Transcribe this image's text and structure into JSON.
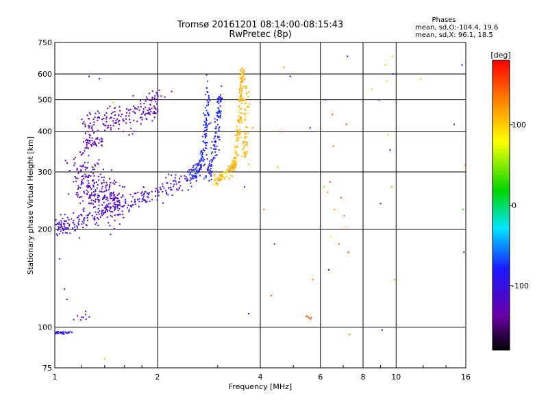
{
  "chart_data": {
    "type": "scatter",
    "title": "Tromsø 20161201 08:14:00-08:15:43",
    "subtitle": "RwPretec (8p)",
    "xlabel": "Frequency [MHz]",
    "ylabel": "Stationary phase Virtual Height [km]",
    "x_scale": "log",
    "y_scale": "log",
    "xlim": [
      1,
      16
    ],
    "ylim": [
      75,
      750
    ],
    "x_ticks": [
      1,
      2,
      4,
      6,
      8,
      10,
      16
    ],
    "x_tick_labels": [
      "1",
      "2",
      "4",
      "6",
      "8",
      "10",
      "16"
    ],
    "y_ticks": [
      75,
      100,
      200,
      300,
      400,
      500,
      600,
      750
    ],
    "y_tick_labels": [
      "75",
      "100",
      "200",
      "300",
      "400",
      "500",
      "600",
      "750"
    ],
    "grid": true,
    "legend": {
      "title": "Phases",
      "lines": [
        "mean, sd,O:-104.4, 19.6",
        "mean, sd,X:  96.1, 18.5"
      ]
    },
    "colorbar": {
      "label": "[deg]",
      "range": [
        -180,
        180
      ],
      "ticks": [
        100,
        0,
        -100
      ],
      "tick_labels": [
        "100",
        "0",
        "-100"
      ]
    },
    "traces": [
      {
        "kind": "curve",
        "x": [
          1.0,
          1.05,
          1.1,
          1.2,
          1.35,
          1.5,
          1.7,
          1.9,
          2.1,
          2.3,
          2.5
        ],
        "y": [
          205,
          203,
          205,
          212,
          222,
          232,
          245,
          256,
          266,
          277,
          290
        ],
        "spread": 0.035,
        "count": 260,
        "phase": -110,
        "phase_sd": 10
      },
      {
        "kind": "curve",
        "x": [
          1.15,
          1.25,
          1.35,
          1.45,
          1.55
        ],
        "y": [
          300,
          280,
          262,
          250,
          242
        ],
        "spread": 0.09,
        "count": 280,
        "phase": -120,
        "phase_sd": 12
      },
      {
        "kind": "curve",
        "x": [
          1.2,
          1.3,
          1.45,
          1.6,
          1.75,
          1.9,
          2.0
        ],
        "y": [
          400,
          418,
          432,
          440,
          448,
          470,
          500
        ],
        "spread": 0.05,
        "count": 190,
        "phase": -125,
        "phase_sd": 12
      },
      {
        "kind": "curve",
        "x": [
          1.22,
          1.3,
          1.38
        ],
        "y": [
          370,
          368,
          375
        ],
        "spread": 0.025,
        "count": 40,
        "phase": -128,
        "phase_sd": 8
      },
      {
        "kind": "curve",
        "x": [
          2.5,
          2.62,
          2.7,
          2.76,
          2.8,
          2.82
        ],
        "y": [
          290,
          300,
          330,
          380,
          450,
          560
        ],
        "spread": 0.03,
        "count": 150,
        "phase": -80,
        "phase_sd": 12
      },
      {
        "kind": "curve",
        "x": [
          2.8,
          2.88,
          2.96,
          3.02,
          3.06
        ],
        "y": [
          290,
          320,
          380,
          450,
          520
        ],
        "spread": 0.03,
        "count": 120,
        "phase": -85,
        "phase_sd": 10
      },
      {
        "kind": "curve",
        "x": [
          2.9,
          3.0,
          3.1,
          3.25,
          3.4
        ],
        "y": [
          280,
          285,
          292,
          305,
          320
        ],
        "spread": 0.02,
        "count": 80,
        "phase": 110,
        "phase_sd": 12
      },
      {
        "kind": "curve",
        "x": [
          3.3,
          3.4,
          3.45,
          3.5,
          3.52,
          3.55
        ],
        "y": [
          300,
          340,
          400,
          470,
          540,
          620
        ],
        "spread": 0.025,
        "count": 150,
        "phase": 110,
        "phase_sd": 10
      },
      {
        "kind": "curve",
        "x": [
          3.6,
          3.63,
          3.66
        ],
        "y": [
          320,
          420,
          560
        ],
        "spread": 0.025,
        "count": 60,
        "phase": 110,
        "phase_sd": 8
      },
      {
        "kind": "curve",
        "x": [
          1.0,
          1.04,
          1.08,
          1.12
        ],
        "y": [
          96,
          96,
          96,
          97
        ],
        "spread": 0.005,
        "count": 35,
        "phase": -100,
        "phase_sd": 5
      },
      {
        "kind": "curve",
        "x": [
          1.02,
          1.1,
          1.2,
          1.3
        ],
        "y": [
          170,
          105,
          108,
          110
        ],
        "spread": 0.02,
        "count": 12,
        "phase": -110,
        "phase_sd": 8
      }
    ],
    "points": [
      {
        "x": 6.15,
        "y": 270,
        "phase": 50
      },
      {
        "x": 6.3,
        "y": 260,
        "phase": 130
      },
      {
        "x": 6.35,
        "y": 150,
        "phase": -90
      },
      {
        "x": 6.4,
        "y": 280,
        "phase": 160
      },
      {
        "x": 6.2,
        "y": 500,
        "phase": -100
      },
      {
        "x": 6.5,
        "y": 450,
        "phase": 150
      },
      {
        "x": 6.55,
        "y": 360,
        "phase": 140
      },
      {
        "x": 6.6,
        "y": 230,
        "phase": 120
      },
      {
        "x": 6.45,
        "y": 190,
        "phase": 90
      },
      {
        "x": 7.2,
        "y": 680,
        "phase": -110
      },
      {
        "x": 7.15,
        "y": 420,
        "phase": 155
      },
      {
        "x": 7.1,
        "y": 200,
        "phase": 140
      },
      {
        "x": 7.05,
        "y": 220,
        "phase": 30
      },
      {
        "x": 7.25,
        "y": 170,
        "phase": 160
      },
      {
        "x": 7.3,
        "y": 95,
        "phase": 140
      },
      {
        "x": 8.9,
        "y": 500,
        "phase": -110
      },
      {
        "x": 9.0,
        "y": 240,
        "phase": -100
      },
      {
        "x": 9.1,
        "y": 98,
        "phase": -100
      },
      {
        "x": 9.6,
        "y": 350,
        "phase": -110
      },
      {
        "x": 9.7,
        "y": 270,
        "phase": 40
      },
      {
        "x": 9.8,
        "y": 600,
        "phase": -105
      },
      {
        "x": 9.75,
        "y": 680,
        "phase": 100
      },
      {
        "x": 9.9,
        "y": 140,
        "phase": 120
      },
      {
        "x": 5.6,
        "y": 410,
        "phase": -110
      },
      {
        "x": 5.7,
        "y": 140,
        "phase": 140
      },
      {
        "x": 5.45,
        "y": 108,
        "phase": 150
      },
      {
        "x": 5.5,
        "y": 108,
        "phase": 150
      },
      {
        "x": 5.55,
        "y": 107,
        "phase": 150
      },
      {
        "x": 5.6,
        "y": 106,
        "phase": 150
      },
      {
        "x": 5.65,
        "y": 107,
        "phase": 150
      },
      {
        "x": 4.6,
        "y": 400,
        "phase": 150
      },
      {
        "x": 4.5,
        "y": 310,
        "phase": 110
      },
      {
        "x": 4.4,
        "y": 180,
        "phase": -100
      },
      {
        "x": 4.3,
        "y": 125,
        "phase": 150
      },
      {
        "x": 4.1,
        "y": 230,
        "phase": 140
      },
      {
        "x": 4.9,
        "y": 590,
        "phase": -100
      },
      {
        "x": 4.7,
        "y": 630,
        "phase": 110
      },
      {
        "x": 3.8,
        "y": 410,
        "phase": 120
      },
      {
        "x": 3.6,
        "y": 270,
        "phase": -100
      },
      {
        "x": 3.7,
        "y": 110,
        "phase": -110
      },
      {
        "x": 11.8,
        "y": 580,
        "phase": 100
      },
      {
        "x": 14.8,
        "y": 420,
        "phase": -110
      },
      {
        "x": 15.6,
        "y": 640,
        "phase": -80
      },
      {
        "x": 15.7,
        "y": 230,
        "phase": 20
      },
      {
        "x": 15.8,
        "y": 170,
        "phase": -110
      },
      {
        "x": 15.9,
        "y": 315,
        "phase": 105
      },
      {
        "x": 9.4,
        "y": 570,
        "phase": 100
      },
      {
        "x": 9.3,
        "y": 640,
        "phase": 100
      },
      {
        "x": 1.48,
        "y": 490,
        "phase": 50
      },
      {
        "x": 1.35,
        "y": 580,
        "phase": -110
      },
      {
        "x": 1.26,
        "y": 590,
        "phase": -110
      },
      {
        "x": 1.4,
        "y": 80,
        "phase": 100
      },
      {
        "x": 1.3,
        "y": 310,
        "phase": 40
      },
      {
        "x": 2.1,
        "y": 510,
        "phase": -110
      },
      {
        "x": 2.2,
        "y": 530,
        "phase": -100
      },
      {
        "x": 6.8,
        "y": 180,
        "phase": 140
      },
      {
        "x": 6.9,
        "y": 250,
        "phase": 150
      },
      {
        "x": 8.5,
        "y": 540,
        "phase": 100
      },
      {
        "x": 9.5,
        "y": 390,
        "phase": 100
      }
    ]
  }
}
